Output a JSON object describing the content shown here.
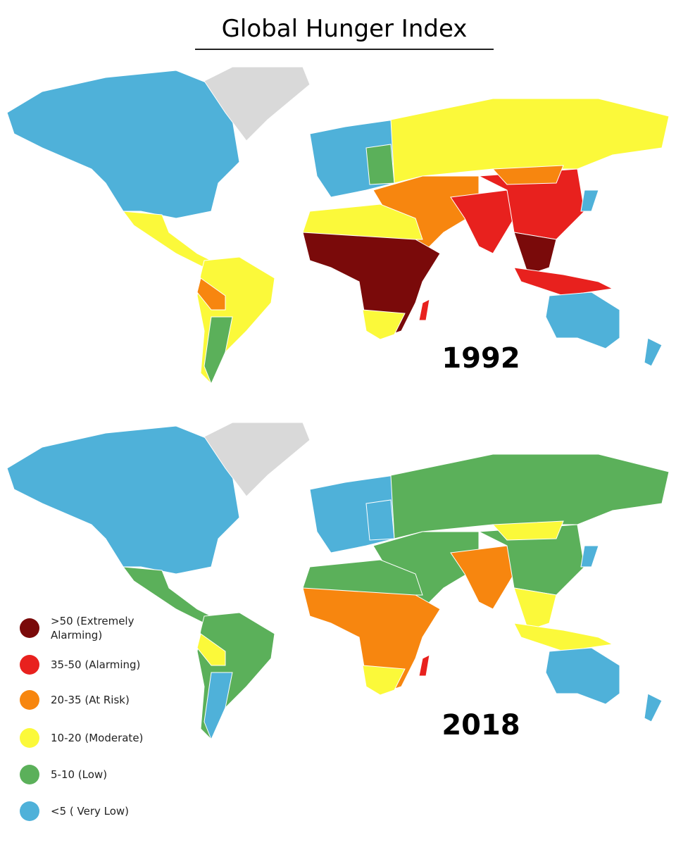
{
  "title": "Global Hunger Index",
  "maps": [
    {
      "year": "1992"
    },
    {
      "year": "2018"
    }
  ],
  "legend": [
    {
      "label": ">50 (Extremely Alarming)",
      "color": "#7a0a0a"
    },
    {
      "label": "35-50 (Alarming)",
      "color": "#e8211e"
    },
    {
      "label": "20-35 (At Risk)",
      "color": "#f7860f"
    },
    {
      "label": "10-20 (Moderate)",
      "color": "#fbf93a"
    },
    {
      "label": "5-10 (Low)",
      "color": "#5bb05a"
    },
    {
      "label": "<5 ( Very Low)",
      "color": "#4fb1d9"
    }
  ]
}
